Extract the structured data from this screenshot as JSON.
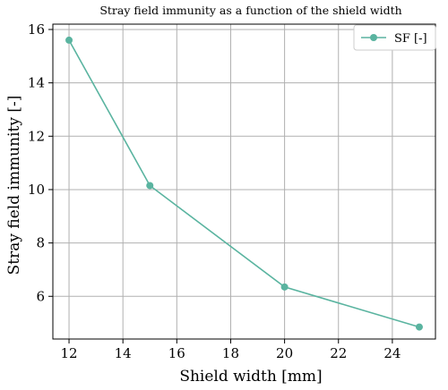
{
  "chart_data": {
    "type": "line",
    "title": "Stray field immunity as a function of the shield width",
    "xlabel": "Shield width [mm]",
    "ylabel": "Stray field immunity [-]",
    "xlim": [
      11.4,
      25.6
    ],
    "ylim": [
      4.4,
      16.2
    ],
    "xticks": [
      12,
      14,
      16,
      18,
      20,
      22,
      24
    ],
    "yticks": [
      6,
      8,
      10,
      12,
      14,
      16
    ],
    "grid": true,
    "legend_position": "top-right",
    "series": [
      {
        "name": "SF [-]",
        "color": "#5ab4a0",
        "marker": "circle",
        "x": [
          12,
          15,
          20,
          25
        ],
        "y": [
          15.6,
          10.15,
          6.35,
          4.85
        ]
      }
    ]
  }
}
